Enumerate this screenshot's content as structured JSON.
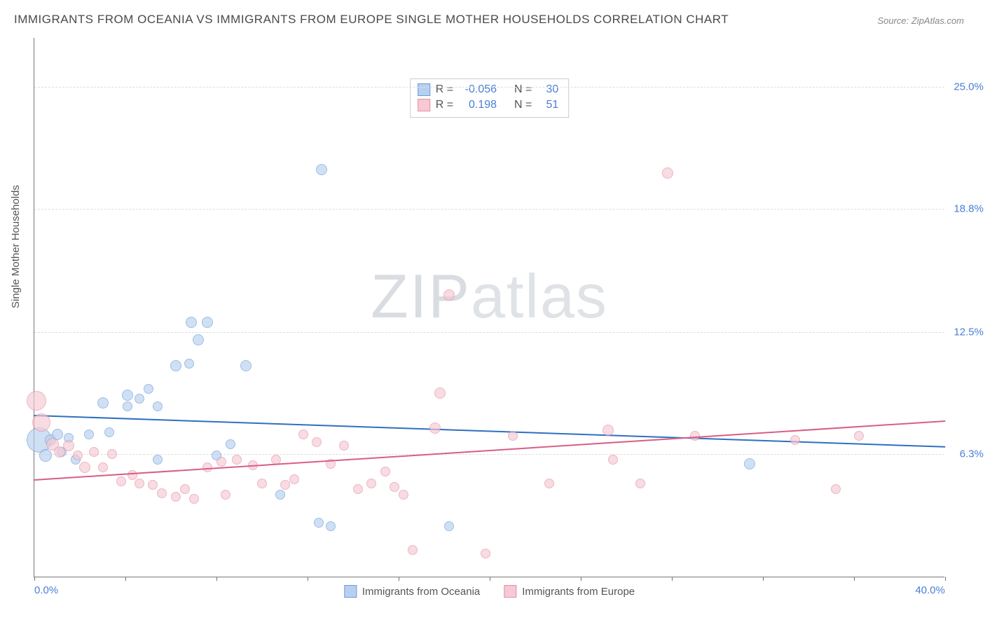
{
  "title": "IMMIGRANTS FROM OCEANIA VS IMMIGRANTS FROM EUROPE SINGLE MOTHER HOUSEHOLDS CORRELATION CHART",
  "source": "Source: ZipAtlas.com",
  "ylabel": "Single Mother Households",
  "watermark_bold": "ZIP",
  "watermark_thin": "atlas",
  "chart": {
    "type": "scatter",
    "xlim": [
      0,
      40
    ],
    "ylim": [
      0,
      27.5
    ],
    "background_color": "#ffffff",
    "grid_color": "#dddddd",
    "axis_color": "#777777",
    "tick_label_color": "#4a7fd6",
    "yticks": [
      {
        "v": 6.3,
        "label": "6.3%"
      },
      {
        "v": 12.5,
        "label": "12.5%"
      },
      {
        "v": 18.8,
        "label": "18.8%"
      },
      {
        "v": 25.0,
        "label": "25.0%"
      }
    ],
    "xticks_minor": [
      0,
      4,
      8,
      12,
      16,
      20,
      24,
      28,
      32,
      36,
      40
    ],
    "xtick_labels": [
      {
        "v": 0,
        "label": "0.0%"
      },
      {
        "v": 40,
        "label": "40.0%"
      }
    ],
    "series": [
      {
        "key": "oceania",
        "label": "Immigrants from Oceania",
        "fill": "#b8d0ef",
        "stroke": "#6a9bd8",
        "fill_opacity": 0.65,
        "line_color": "#2f6fc2",
        "R": "-0.056",
        "N": "30",
        "trend": {
          "y_at_x0": 8.3,
          "y_at_xmax": 6.7
        },
        "points": [
          {
            "x": 0.2,
            "y": 7.0,
            "r": 18
          },
          {
            "x": 0.5,
            "y": 6.2,
            "r": 9
          },
          {
            "x": 0.7,
            "y": 7.0,
            "r": 8
          },
          {
            "x": 1.0,
            "y": 7.3,
            "r": 8
          },
          {
            "x": 1.2,
            "y": 6.4,
            "r": 7
          },
          {
            "x": 1.5,
            "y": 7.1,
            "r": 7
          },
          {
            "x": 1.8,
            "y": 6.0,
            "r": 7
          },
          {
            "x": 2.4,
            "y": 7.3,
            "r": 7
          },
          {
            "x": 3.0,
            "y": 8.9,
            "r": 8
          },
          {
            "x": 3.3,
            "y": 7.4,
            "r": 7
          },
          {
            "x": 4.1,
            "y": 9.3,
            "r": 8
          },
          {
            "x": 4.1,
            "y": 8.7,
            "r": 7
          },
          {
            "x": 4.6,
            "y": 9.1,
            "r": 7
          },
          {
            "x": 5.0,
            "y": 9.6,
            "r": 7
          },
          {
            "x": 5.4,
            "y": 8.7,
            "r": 7
          },
          {
            "x": 5.4,
            "y": 6.0,
            "r": 7
          },
          {
            "x": 6.2,
            "y": 10.8,
            "r": 8
          },
          {
            "x": 6.8,
            "y": 10.9,
            "r": 7
          },
          {
            "x": 6.9,
            "y": 13.0,
            "r": 8
          },
          {
            "x": 7.2,
            "y": 12.1,
            "r": 8
          },
          {
            "x": 7.6,
            "y": 13.0,
            "r": 8
          },
          {
            "x": 8.0,
            "y": 6.2,
            "r": 7
          },
          {
            "x": 8.6,
            "y": 6.8,
            "r": 7
          },
          {
            "x": 9.3,
            "y": 10.8,
            "r": 8
          },
          {
            "x": 10.8,
            "y": 4.2,
            "r": 7
          },
          {
            "x": 12.5,
            "y": 2.8,
            "r": 7
          },
          {
            "x": 13.0,
            "y": 2.6,
            "r": 7
          },
          {
            "x": 12.6,
            "y": 20.8,
            "r": 8
          },
          {
            "x": 18.2,
            "y": 2.6,
            "r": 7
          },
          {
            "x": 31.4,
            "y": 5.8,
            "r": 8
          }
        ]
      },
      {
        "key": "europe",
        "label": "Immigrants from Europe",
        "fill": "#f6c9d4",
        "stroke": "#e290a5",
        "fill_opacity": 0.65,
        "line_color": "#d85e86",
        "R": "0.198",
        "N": "51",
        "trend": {
          "y_at_x0": 5.0,
          "y_at_xmax": 8.0
        },
        "points": [
          {
            "x": 0.1,
            "y": 9.0,
            "r": 14
          },
          {
            "x": 0.3,
            "y": 7.9,
            "r": 13
          },
          {
            "x": 0.8,
            "y": 6.8,
            "r": 9
          },
          {
            "x": 1.1,
            "y": 6.4,
            "r": 8
          },
          {
            "x": 1.5,
            "y": 6.7,
            "r": 8
          },
          {
            "x": 1.9,
            "y": 6.2,
            "r": 7
          },
          {
            "x": 2.2,
            "y": 5.6,
            "r": 8
          },
          {
            "x": 2.6,
            "y": 6.4,
            "r": 7
          },
          {
            "x": 3.0,
            "y": 5.6,
            "r": 7
          },
          {
            "x": 3.4,
            "y": 6.3,
            "r": 7
          },
          {
            "x": 3.8,
            "y": 4.9,
            "r": 7
          },
          {
            "x": 4.3,
            "y": 5.2,
            "r": 7
          },
          {
            "x": 4.6,
            "y": 4.8,
            "r": 7
          },
          {
            "x": 5.2,
            "y": 4.7,
            "r": 7
          },
          {
            "x": 5.6,
            "y": 4.3,
            "r": 7
          },
          {
            "x": 6.2,
            "y": 4.1,
            "r": 7
          },
          {
            "x": 6.6,
            "y": 4.5,
            "r": 7
          },
          {
            "x": 7.0,
            "y": 4.0,
            "r": 7
          },
          {
            "x": 7.6,
            "y": 5.6,
            "r": 7
          },
          {
            "x": 8.2,
            "y": 5.9,
            "r": 7
          },
          {
            "x": 8.4,
            "y": 4.2,
            "r": 7
          },
          {
            "x": 8.9,
            "y": 6.0,
            "r": 7
          },
          {
            "x": 9.6,
            "y": 5.7,
            "r": 7
          },
          {
            "x": 10.0,
            "y": 4.8,
            "r": 7
          },
          {
            "x": 10.6,
            "y": 6.0,
            "r": 7
          },
          {
            "x": 11.0,
            "y": 4.7,
            "r": 7
          },
          {
            "x": 11.4,
            "y": 5.0,
            "r": 7
          },
          {
            "x": 11.8,
            "y": 7.3,
            "r": 7
          },
          {
            "x": 12.4,
            "y": 6.9,
            "r": 7
          },
          {
            "x": 13.0,
            "y": 5.8,
            "r": 7
          },
          {
            "x": 13.6,
            "y": 6.7,
            "r": 7
          },
          {
            "x": 14.2,
            "y": 4.5,
            "r": 7
          },
          {
            "x": 14.8,
            "y": 4.8,
            "r": 7
          },
          {
            "x": 15.4,
            "y": 5.4,
            "r": 7
          },
          {
            "x": 15.8,
            "y": 4.6,
            "r": 7
          },
          {
            "x": 16.2,
            "y": 4.2,
            "r": 7
          },
          {
            "x": 16.6,
            "y": 1.4,
            "r": 7
          },
          {
            "x": 17.6,
            "y": 7.6,
            "r": 8
          },
          {
            "x": 17.8,
            "y": 9.4,
            "r": 8
          },
          {
            "x": 18.2,
            "y": 14.4,
            "r": 8
          },
          {
            "x": 19.8,
            "y": 1.2,
            "r": 7
          },
          {
            "x": 21.0,
            "y": 7.2,
            "r": 7
          },
          {
            "x": 22.6,
            "y": 4.8,
            "r": 7
          },
          {
            "x": 25.2,
            "y": 7.5,
            "r": 8
          },
          {
            "x": 25.4,
            "y": 6.0,
            "r": 7
          },
          {
            "x": 26.6,
            "y": 4.8,
            "r": 7
          },
          {
            "x": 27.8,
            "y": 20.6,
            "r": 8
          },
          {
            "x": 29.0,
            "y": 7.2,
            "r": 7
          },
          {
            "x": 33.4,
            "y": 7.0,
            "r": 7
          },
          {
            "x": 35.2,
            "y": 4.5,
            "r": 7
          },
          {
            "x": 36.2,
            "y": 7.2,
            "r": 7
          }
        ]
      }
    ]
  }
}
